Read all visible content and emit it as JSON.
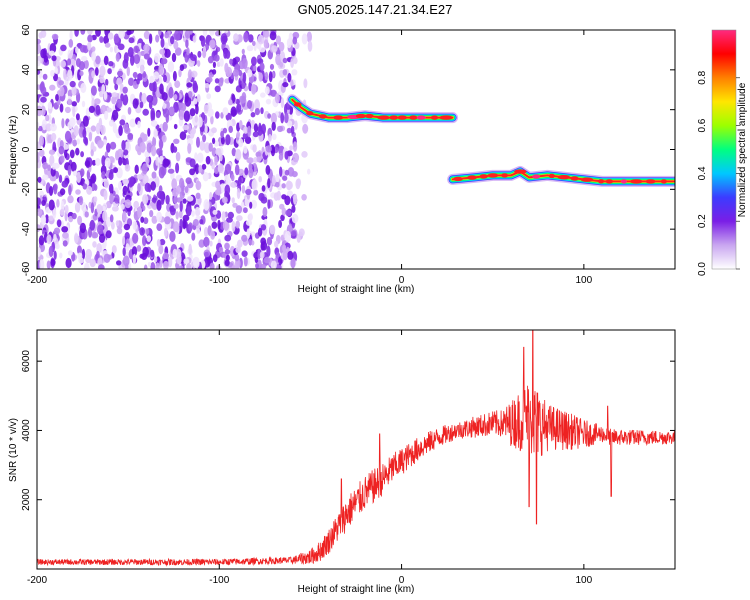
{
  "figure": {
    "title": "GN05.2025.147.21.34.E27"
  },
  "chart_data": [
    {
      "type": "heatmap",
      "title": "GN05.2025.147.21.34.E27",
      "xlabel": "Height of straight line (km)",
      "ylabel": "Frequency (Hz)",
      "xlim": [
        -200,
        150
      ],
      "ylim": [
        -60,
        60
      ],
      "xticks": [
        -200,
        -100,
        0,
        100
      ],
      "yticks": [
        -60,
        -40,
        -20,
        0,
        20,
        40,
        60
      ],
      "colorbar": {
        "label": "Normalized spectral amplitude",
        "range": [
          0,
          1
        ],
        "ticks": [
          0.0,
          0.2,
          0.4,
          0.6,
          0.8
        ],
        "colormap": [
          "#ffffff",
          "#c9a6f0",
          "#7a1ee6",
          "#3c3cff",
          "#00c8ff",
          "#00ff80",
          "#9cff00",
          "#ffe600",
          "#ff8000",
          "#ff0000",
          "#ff2a80"
        ]
      },
      "noise_region": {
        "x_range": [
          -200,
          -50
        ],
        "y_range": [
          -60,
          60
        ]
      },
      "tracks": [
        {
          "name": "",
          "points": [
            [
              -60,
              25
            ],
            [
              -55,
              21
            ],
            [
              -50,
              18
            ],
            [
              -45,
              17
            ],
            [
              -40,
              16
            ],
            [
              -30,
              16
            ],
            [
              -20,
              17
            ],
            [
              -10,
              16
            ],
            [
              0,
              16
            ],
            [
              10,
              16
            ],
            [
              20,
              16
            ],
            [
              28,
              16
            ]
          ]
        },
        {
          "name": "",
          "points": [
            [
              28,
              -15
            ],
            [
              40,
              -14
            ],
            [
              50,
              -13
            ],
            [
              60,
              -13
            ],
            [
              65,
              -11
            ],
            [
              70,
              -14
            ],
            [
              80,
              -13
            ],
            [
              90,
              -14
            ],
            [
              100,
              -15
            ],
            [
              110,
              -16
            ],
            [
              120,
              -16
            ],
            [
              130,
              -16
            ],
            [
              140,
              -16
            ],
            [
              150,
              -16
            ]
          ]
        }
      ],
      "grid": false
    },
    {
      "type": "line",
      "xlabel": "Height of straight line (km)",
      "ylabel": "SNR (10 * v/v)",
      "xlim": [
        -200,
        150
      ],
      "ylim": [
        0,
        6900
      ],
      "xticks": [
        -200,
        -100,
        0,
        100
      ],
      "yticks": [
        2000,
        4000,
        6000
      ],
      "color": "#ee2222",
      "envelope": {
        "x": [
          -200,
          -150,
          -100,
          -60,
          -50,
          -45,
          -40,
          -35,
          -30,
          -25,
          -20,
          -15,
          -10,
          -5,
          0,
          10,
          20,
          30,
          40,
          50,
          60,
          65,
          70,
          72,
          75,
          80,
          90,
          100,
          110,
          115,
          120,
          130,
          140,
          150
        ],
        "y": [
          200,
          200,
          200,
          250,
          350,
          500,
          800,
          1200,
          1600,
          1900,
          2200,
          2400,
          2600,
          2900,
          3100,
          3500,
          3800,
          4000,
          4100,
          4200,
          4200,
          4300,
          4400,
          4300,
          4200,
          4100,
          4000,
          3900,
          3900,
          3800,
          3800,
          3800,
          3800,
          3800
        ]
      },
      "noise_amplitude": {
        "x": [
          -200,
          -60,
          -45,
          -30,
          -15,
          0,
          30,
          55,
          65,
          72,
          80,
          95,
          110,
          150
        ],
        "y": [
          80,
          100,
          300,
          500,
          500,
          400,
          250,
          400,
          900,
          1200,
          700,
          500,
          250,
          200
        ]
      },
      "spikes": [
        [
          -12,
          3900
        ],
        [
          -33,
          2600
        ],
        [
          72,
          6900
        ],
        [
          67,
          6400
        ],
        [
          74,
          1300
        ],
        [
          115,
          2100
        ],
        [
          113,
          4700
        ],
        [
          70,
          1800
        ]
      ],
      "grid": false
    }
  ]
}
